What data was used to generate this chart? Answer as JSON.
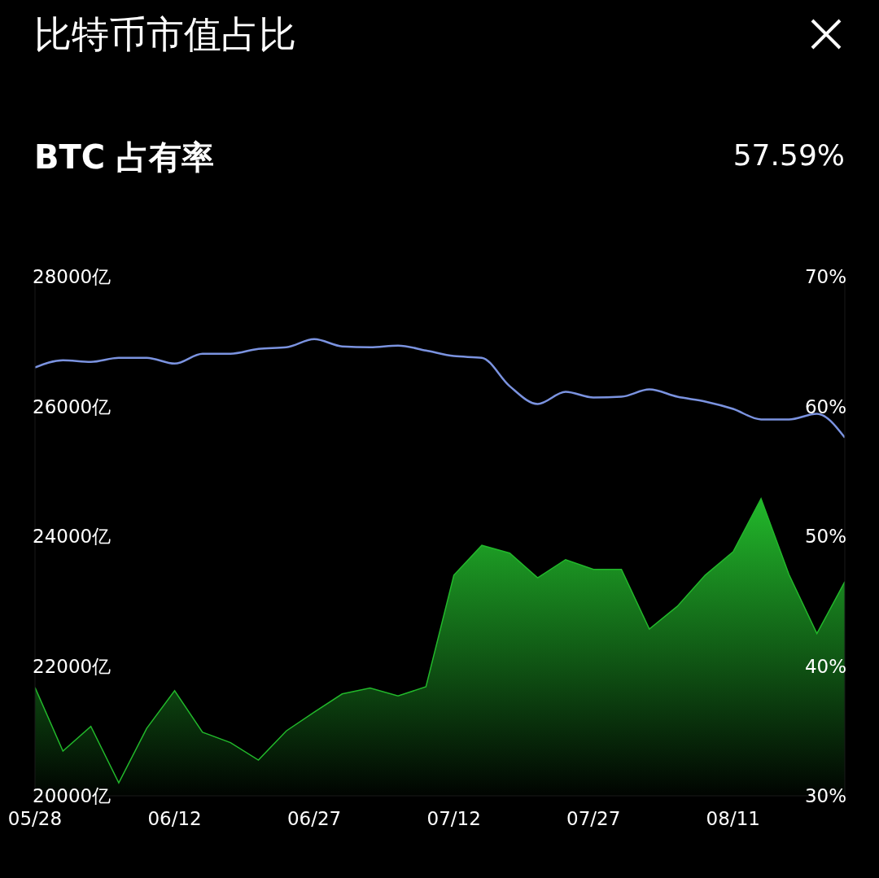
{
  "chart_data": {
    "type": "line",
    "title": "比特币市值占比",
    "subtitle": "BTC 占有率",
    "annotations": [
      "57.59%"
    ],
    "x": [
      "--05-28",
      "--05-31",
      "--06-03",
      "--06-06",
      "--06-09",
      "--06-12",
      "--06-15",
      "--06-18",
      "--06-21",
      "--06-24",
      "--06-27",
      "--06-30",
      "--07-03",
      "--07-06",
      "--07-09",
      "--07-12",
      "--07-15",
      "--07-18",
      "--07-21",
      "--07-24",
      "--07-27",
      "--07-30",
      "--08-02",
      "--08-05",
      "--08-08",
      "--08-11",
      "--08-14",
      "--08-17",
      "--08-20",
      "--08-23"
    ],
    "xlim": [
      "--05-28",
      "--08-23"
    ],
    "xticks": [
      {
        "value": "--05-28",
        "label": "05/28"
      },
      {
        "value": "--06-12",
        "label": "06/12"
      },
      {
        "value": "--06-27",
        "label": "06/27"
      },
      {
        "value": "--07-12",
        "label": "07/12"
      },
      {
        "value": "--07-27",
        "label": "07/27"
      },
      {
        "value": "--08-11",
        "label": "08/11"
      }
    ],
    "ylim": [
      20000,
      28000
    ],
    "yticks": [
      {
        "value": 20000,
        "label": "20000亿"
      },
      {
        "value": 22000,
        "label": "22000亿"
      },
      {
        "value": 24000,
        "label": "24000亿"
      },
      {
        "value": 26000,
        "label": "26000亿"
      },
      {
        "value": 28000,
        "label": "28000亿"
      }
    ],
    "y2lim": [
      30,
      70
    ],
    "y2ticks": [
      {
        "value": 30,
        "label": "30%"
      },
      {
        "value": 40,
        "label": "40%"
      },
      {
        "value": 50,
        "label": "50%"
      },
      {
        "value": 60,
        "label": "60%"
      },
      {
        "value": 70,
        "label": "70%"
      }
    ],
    "series": [
      {
        "type": "area",
        "color": "#22b82b",
        "values": [
          21670,
          20690,
          21070,
          20200,
          21040,
          21620,
          20980,
          20820,
          20550,
          21000,
          21290,
          21570,
          21660,
          21540,
          21680,
          23400,
          23860,
          23740,
          23360,
          23640,
          23490,
          23490,
          22570,
          22920,
          23400,
          23760,
          24580,
          23410,
          22500,
          23300
        ]
      },
      {
        "axis": "y2",
        "color": "#7b93e0",
        "values": [
          63.0,
          63.56,
          63.44,
          63.75,
          63.75,
          63.3,
          64.06,
          64.06,
          64.44,
          64.56,
          65.19,
          64.63,
          64.56,
          64.69,
          64.31,
          63.88,
          63.75,
          61.56,
          60.19,
          61.13,
          60.69,
          60.75,
          61.31,
          60.75,
          60.38,
          59.81,
          59.0,
          59.0,
          59.44,
          57.6
        ]
      }
    ],
    "grid": false,
    "legend": false
  }
}
